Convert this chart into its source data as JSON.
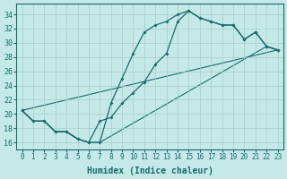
{
  "xlabel": "Humidex (Indice chaleur)",
  "xlim": [
    -0.5,
    23.5
  ],
  "ylim": [
    15.0,
    35.5
  ],
  "yticks": [
    16,
    18,
    20,
    22,
    24,
    26,
    28,
    30,
    32,
    34
  ],
  "xticks": [
    0,
    1,
    2,
    3,
    4,
    5,
    6,
    7,
    8,
    9,
    10,
    11,
    12,
    13,
    14,
    15,
    16,
    17,
    18,
    19,
    20,
    21,
    22,
    23
  ],
  "background_color": "#c5e8e8",
  "grid_color": "#a8cccc",
  "line_color": "#1a6b6b",
  "line1_x": [
    0,
    1,
    2,
    3,
    4,
    5,
    6,
    7,
    8,
    9,
    10,
    11,
    12,
    13,
    14,
    15,
    16,
    17,
    18,
    19,
    20,
    21,
    22,
    23
  ],
  "line1_y": [
    20.5,
    19.0,
    19.0,
    17.5,
    17.5,
    16.5,
    16.0,
    19.0,
    19.5,
    21.5,
    23.0,
    24.5,
    27.0,
    28.5,
    33.0,
    34.5,
    33.5,
    33.0,
    32.5,
    32.5,
    30.5,
    31.5,
    29.5,
    29.0
  ],
  "line2_x": [
    0,
    1,
    2,
    3,
    4,
    5,
    6,
    7,
    8,
    9,
    10,
    11,
    12,
    13,
    14,
    15,
    16,
    17,
    18,
    19,
    20,
    21,
    22,
    23
  ],
  "line2_y": [
    20.5,
    19.0,
    19.0,
    17.5,
    17.5,
    16.5,
    16.0,
    16.0,
    21.5,
    25.0,
    28.5,
    31.5,
    32.5,
    33.0,
    34.0,
    34.5,
    33.5,
    33.0,
    32.5,
    32.5,
    30.5,
    31.5,
    29.5,
    29.0
  ],
  "line3_x": [
    0,
    1,
    2,
    3,
    4,
    5,
    6,
    7,
    22,
    23
  ],
  "line3_y": [
    20.5,
    19.0,
    19.0,
    17.5,
    17.5,
    16.5,
    16.0,
    16.0,
    29.5,
    29.0
  ],
  "line4_x": [
    0,
    23
  ],
  "line4_y": [
    20.5,
    29.0
  ]
}
